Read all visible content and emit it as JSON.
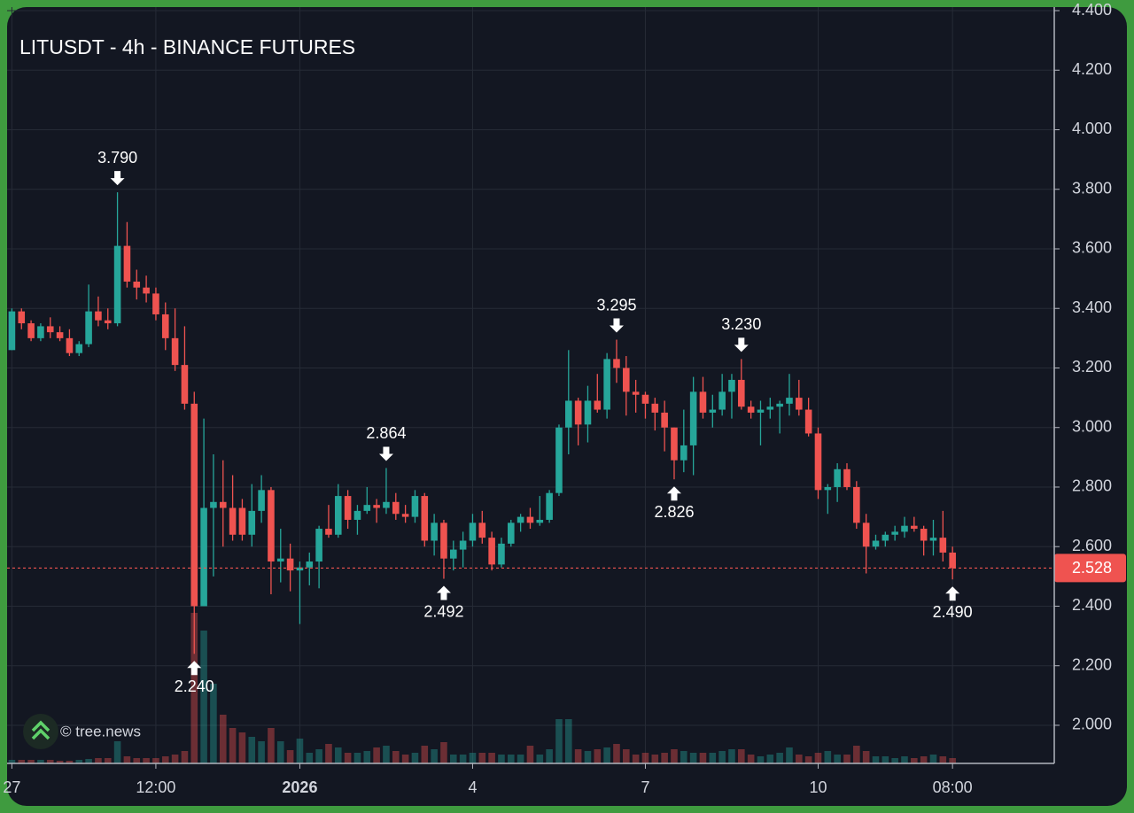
{
  "chart_data": {
    "type": "candlestick",
    "title": "LITUSDT - 4h - BINANCE FUTURES",
    "watermark": "© tree.news",
    "up_color": "#26a69a",
    "down_color": "#ef5350",
    "grid": true,
    "xlim": [
      -0.5,
      108.6
    ],
    "xticks": [
      {
        "value": 0,
        "label": "27"
      },
      {
        "value": 15,
        "label": "12:00"
      },
      {
        "value": 30,
        "label": "2026"
      },
      {
        "value": 48,
        "label": "4"
      },
      {
        "value": 66,
        "label": "7"
      },
      {
        "value": 84,
        "label": "10"
      },
      {
        "value": 98,
        "label": "08:00"
      }
    ],
    "ylim": [
      1.872,
      4.4
    ],
    "yticks": [
      {
        "value": 2.0,
        "label": "2.000"
      },
      {
        "value": 2.2,
        "label": "2.200"
      },
      {
        "value": 2.4,
        "label": "2.400"
      },
      {
        "value": 2.6,
        "label": "2.600"
      },
      {
        "value": 2.8,
        "label": "2.800"
      },
      {
        "value": 3.0,
        "label": "3.000"
      },
      {
        "value": 3.2,
        "label": "3.200"
      },
      {
        "value": 3.4,
        "label": "3.400"
      },
      {
        "value": 3.6,
        "label": "3.600"
      },
      {
        "value": 3.8,
        "label": "3.800"
      },
      {
        "value": 4.0,
        "label": "4.000"
      },
      {
        "value": 4.2,
        "label": "4.200"
      },
      {
        "value": 4.4,
        "label": "4.400"
      }
    ],
    "open": [
      3.26,
      3.39,
      3.35,
      3.3,
      3.34,
      3.32,
      3.3,
      3.25,
      3.28,
      3.39,
      3.36,
      3.35,
      3.61,
      3.49,
      3.47,
      3.45,
      3.38,
      3.3,
      3.21,
      3.08,
      2.4,
      2.73,
      2.75,
      2.73,
      2.73,
      2.64,
      2.72,
      2.79,
      2.55,
      2.56,
      2.52,
      2.53,
      2.55,
      2.66,
      2.64,
      2.77,
      2.69,
      2.72,
      2.74,
      2.73,
      2.75,
      2.71,
      2.7,
      2.77,
      2.62,
      2.68,
      2.56,
      2.59,
      2.62,
      2.68,
      2.63,
      2.54,
      2.61,
      2.68,
      2.7,
      2.68,
      2.69,
      2.78,
      3.0,
      3.09,
      3.01,
      3.09,
      3.06,
      3.23,
      3.2,
      3.12,
      3.11,
      3.08,
      3.05,
      3.0,
      2.89,
      2.94,
      3.12,
      3.05,
      3.06,
      3.12,
      3.16,
      3.07,
      3.05,
      3.06,
      3.07,
      3.08,
      3.1,
      3.06,
      2.98,
      2.79,
      2.8,
      2.86,
      2.8,
      2.68,
      2.6,
      2.62,
      2.64,
      2.65,
      2.67,
      2.66,
      2.62,
      2.63,
      2.58
    ],
    "high": [
      3.4,
      3.4,
      3.36,
      3.35,
      3.37,
      3.34,
      3.33,
      3.29,
      3.48,
      3.44,
      3.4,
      3.79,
      3.69,
      3.53,
      3.51,
      3.47,
      3.42,
      3.4,
      3.34,
      3.12,
      3.03,
      2.91,
      2.89,
      2.84,
      2.76,
      2.81,
      2.84,
      2.8,
      2.66,
      2.61,
      2.55,
      2.58,
      2.67,
      2.74,
      2.81,
      2.79,
      2.74,
      2.8,
      2.76,
      2.864,
      2.78,
      2.74,
      2.79,
      2.78,
      2.71,
      2.69,
      2.62,
      2.65,
      2.71,
      2.72,
      2.65,
      2.63,
      2.69,
      2.71,
      2.73,
      2.77,
      2.79,
      3.01,
      3.26,
      3.1,
      3.14,
      3.18,
      3.25,
      3.295,
      3.24,
      3.16,
      3.12,
      3.1,
      3.09,
      3.0,
      3.06,
      3.17,
      3.17,
      3.11,
      3.18,
      3.18,
      3.23,
      3.09,
      3.09,
      3.1,
      3.09,
      3.18,
      3.16,
      3.1,
      3.0,
      2.81,
      2.88,
      2.88,
      2.82,
      2.71,
      2.64,
      2.65,
      2.67,
      2.7,
      2.7,
      2.67,
      2.69,
      2.72,
      2.6
    ],
    "low": [
      3.26,
      3.33,
      3.29,
      3.29,
      3.3,
      3.29,
      3.24,
      3.24,
      3.27,
      3.34,
      3.33,
      3.34,
      3.47,
      3.43,
      3.42,
      3.36,
      3.26,
      3.19,
      3.06,
      2.24,
      2.4,
      2.5,
      2.6,
      2.62,
      2.62,
      2.6,
      2.68,
      2.44,
      2.48,
      2.45,
      2.34,
      2.47,
      2.46,
      2.63,
      2.63,
      2.66,
      2.64,
      2.71,
      2.68,
      2.71,
      2.69,
      2.68,
      2.68,
      2.6,
      2.57,
      2.492,
      2.52,
      2.53,
      2.6,
      2.61,
      2.52,
      2.53,
      2.6,
      2.65,
      2.66,
      2.67,
      2.68,
      2.77,
      2.91,
      2.94,
      2.95,
      3.05,
      3.03,
      3.15,
      3.04,
      3.05,
      3.03,
      2.99,
      2.92,
      2.826,
      2.85,
      2.84,
      3.03,
      3.0,
      3.04,
      3.03,
      3.06,
      3.03,
      2.94,
      3.03,
      2.98,
      3.04,
      3.04,
      2.97,
      2.76,
      2.71,
      2.75,
      2.79,
      2.66,
      2.51,
      2.59,
      2.6,
      2.62,
      2.63,
      2.65,
      2.57,
      2.57,
      2.55,
      2.49
    ],
    "close": [
      3.39,
      3.35,
      3.3,
      3.34,
      3.32,
      3.3,
      3.25,
      3.28,
      3.39,
      3.36,
      3.35,
      3.61,
      3.49,
      3.47,
      3.45,
      3.38,
      3.3,
      3.21,
      3.08,
      2.4,
      2.73,
      2.75,
      2.73,
      2.64,
      2.64,
      2.72,
      2.79,
      2.55,
      2.56,
      2.52,
      2.53,
      2.55,
      2.66,
      2.64,
      2.77,
      2.69,
      2.72,
      2.74,
      2.73,
      2.75,
      2.71,
      2.7,
      2.77,
      2.62,
      2.68,
      2.56,
      2.59,
      2.62,
      2.68,
      2.63,
      2.54,
      2.61,
      2.68,
      2.7,
      2.68,
      2.69,
      2.78,
      3.0,
      3.09,
      3.01,
      3.09,
      3.06,
      3.23,
      3.2,
      3.12,
      3.11,
      3.08,
      3.05,
      3.0,
      2.89,
      2.94,
      3.12,
      3.05,
      3.06,
      3.12,
      3.16,
      3.07,
      3.05,
      3.06,
      3.07,
      3.08,
      3.1,
      3.06,
      2.98,
      2.79,
      2.8,
      2.86,
      2.8,
      2.68,
      2.6,
      2.62,
      2.64,
      2.65,
      2.67,
      2.66,
      2.62,
      2.63,
      2.58,
      2.528
    ],
    "volume": [
      4,
      4,
      4,
      4,
      4,
      3,
      3,
      4,
      5,
      6,
      6,
      25,
      8,
      6,
      6,
      6,
      8,
      10,
      14,
      170,
      150,
      90,
      55,
      40,
      35,
      30,
      25,
      40,
      25,
      15,
      28,
      12,
      16,
      22,
      18,
      12,
      12,
      14,
      18,
      20,
      14,
      10,
      12,
      20,
      16,
      24,
      10,
      10,
      12,
      12,
      12,
      10,
      10,
      10,
      20,
      10,
      16,
      50,
      50,
      16,
      14,
      16,
      18,
      22,
      16,
      10,
      12,
      10,
      12,
      16,
      14,
      12,
      12,
      12,
      14,
      16,
      16,
      10,
      8,
      10,
      12,
      18,
      10,
      8,
      12,
      14,
      10,
      10,
      20,
      14,
      8,
      8,
      6,
      8,
      6,
      8,
      10,
      8,
      6
    ],
    "annotations": [
      {
        "at": 11,
        "value": 3.79,
        "label": "3.790",
        "position": "above"
      },
      {
        "at": 19,
        "value": 2.24,
        "label": "2.240",
        "position": "below"
      },
      {
        "at": 39,
        "value": 2.864,
        "label": "2.864",
        "position": "above"
      },
      {
        "at": 45,
        "value": 2.492,
        "label": "2.492",
        "position": "below"
      },
      {
        "at": 63,
        "value": 3.295,
        "label": "3.295",
        "position": "above"
      },
      {
        "at": 69,
        "value": 2.826,
        "label": "2.826",
        "position": "below"
      },
      {
        "at": 76,
        "value": 3.23,
        "label": "3.230",
        "position": "above"
      },
      {
        "at": 98,
        "value": 2.49,
        "label": "2.490",
        "position": "below"
      }
    ],
    "last_price": {
      "value": 2.528,
      "label": "2.528"
    }
  }
}
